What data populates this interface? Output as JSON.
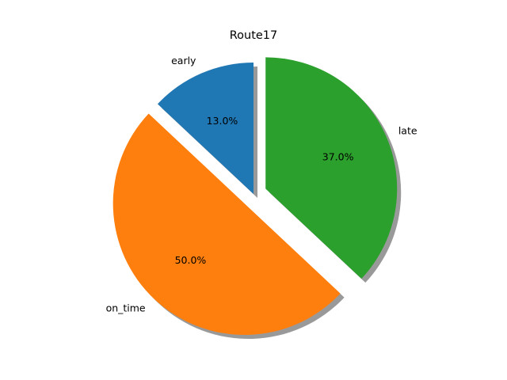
{
  "chart_data": {
    "type": "pie",
    "title": "Route17",
    "slices": [
      {
        "label": "early",
        "value": 13.0,
        "pct_label": "13.0%",
        "color": "#1f77b4",
        "exploded": false
      },
      {
        "label": "on_time",
        "value": 50.0,
        "pct_label": "50.0%",
        "color": "#ff7f0e",
        "exploded": true
      },
      {
        "label": "late",
        "value": 37.0,
        "pct_label": "37.0%",
        "color": "#2ca02c",
        "exploded": true
      }
    ],
    "start_angle_deg": 90,
    "direction": "counterclockwise",
    "shadow": true,
    "legend": "none"
  }
}
